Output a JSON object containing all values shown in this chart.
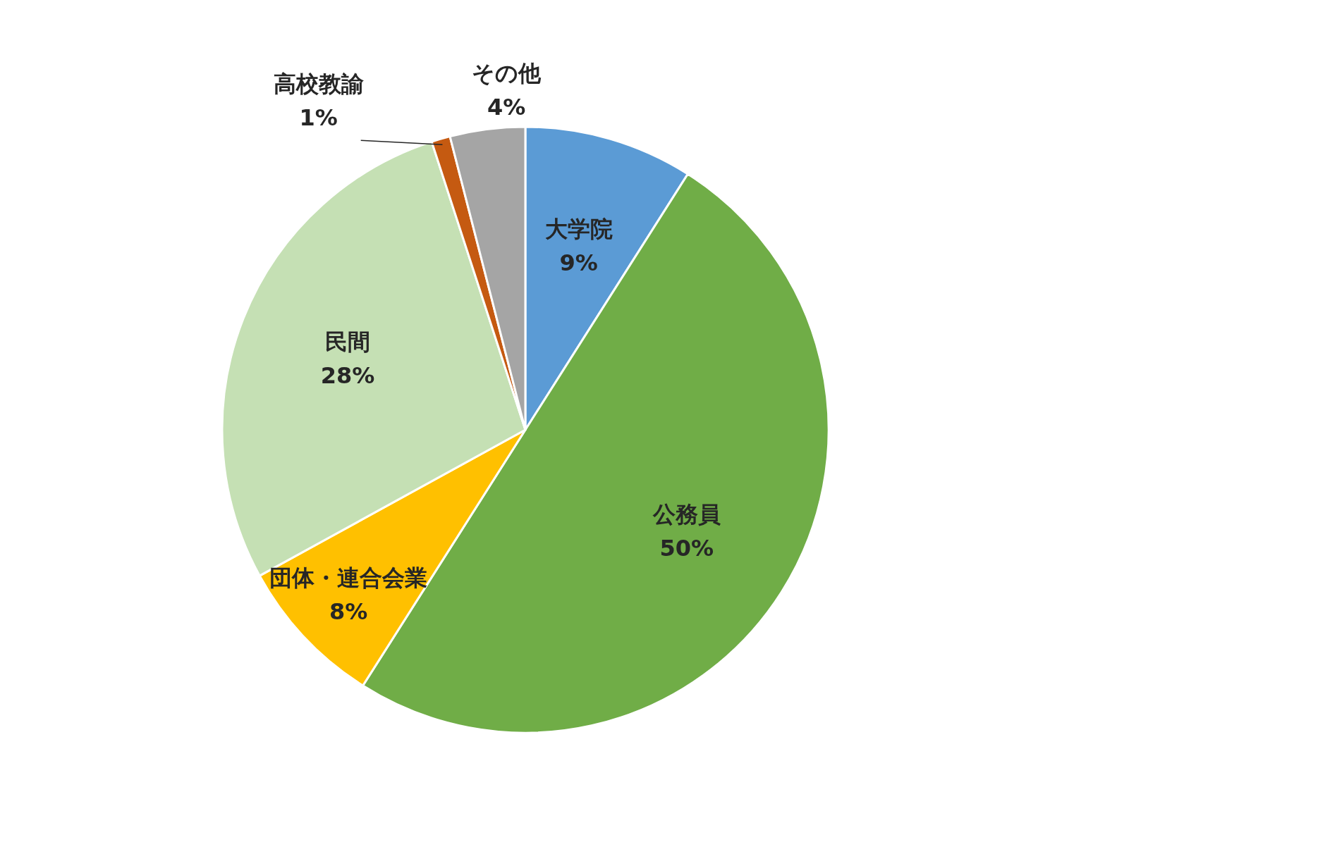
{
  "chart_data": {
    "type": "pie",
    "categories": [
      "大学院",
      "公務員",
      "団体・連合会業",
      "民間",
      "高校教諭",
      "その他"
    ],
    "values": [
      9,
      50,
      8,
      28,
      1,
      4
    ],
    "value_labels": [
      "9%",
      "50%",
      "8%",
      "28%",
      "1%",
      "4%"
    ],
    "colors": [
      "#5b9bd5",
      "#70ad47",
      "#ffc000",
      "#c5e0b4",
      "#c55a11",
      "#a5a5a5"
    ],
    "legend": false
  }
}
